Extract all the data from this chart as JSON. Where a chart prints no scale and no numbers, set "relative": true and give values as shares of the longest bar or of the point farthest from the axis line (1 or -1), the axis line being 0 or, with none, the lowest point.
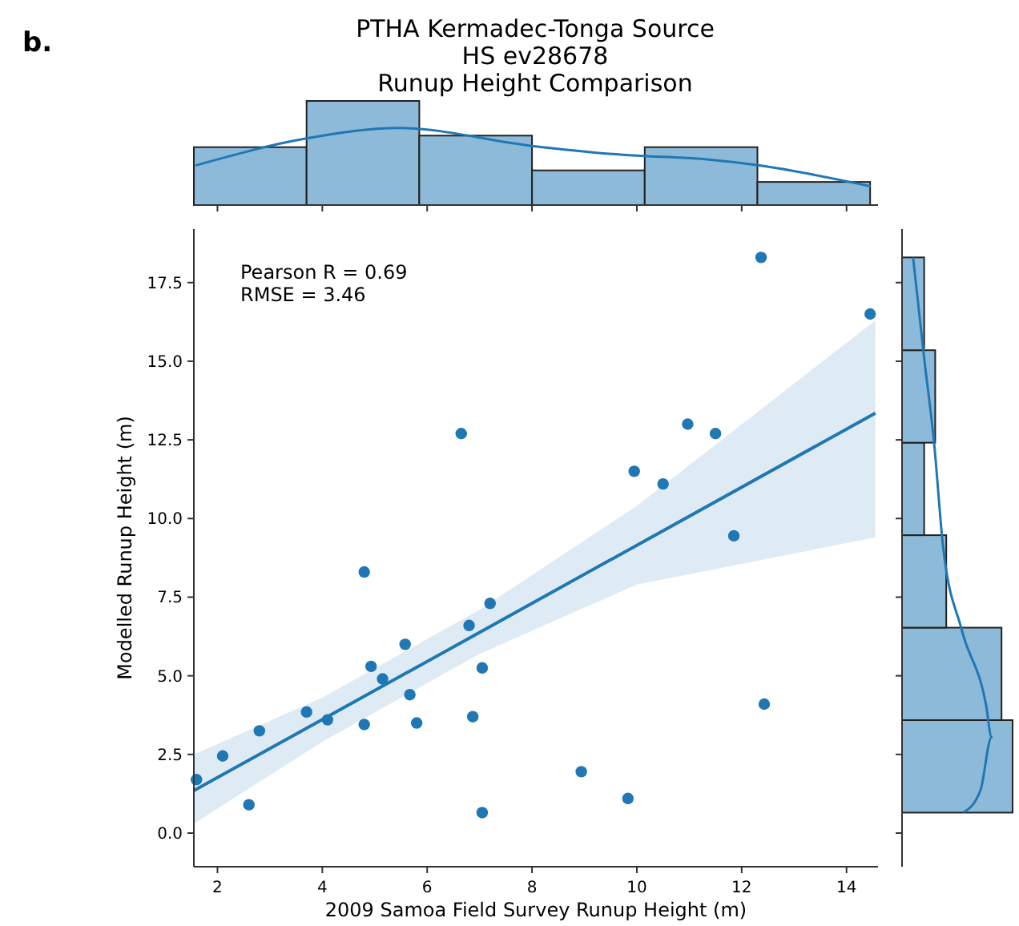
{
  "chart_data": [
    {
      "type": "histogram",
      "title": "PTHA Kermadec-Tonga Source\nHS ev28678\nRunup Height Comparison",
      "annotations": [
        "b."
      ],
      "relative": true,
      "bins": [
        1.55,
        3.7,
        5.85,
        8.0,
        10.15,
        12.3,
        14.45
      ],
      "values": [
        0.556,
        1,
        0.667,
        0.333,
        0.556,
        0.222
      ],
      "color": "#8ebad9",
      "xlim": [
        1.55,
        14.6
      ],
      "xticks": [
        2,
        4,
        6,
        8,
        10,
        12,
        14
      ],
      "tick_labels": false,
      "series": [
        {
          "type": "line",
          "color": "#1f77b4",
          "x": [
            1.58,
            3.7,
            5.46,
            7.97,
            9.79,
            11.3,
            12.34,
            14.46
          ],
          "values": [
            0.38,
            0.64,
            0.74,
            0.57,
            0.48,
            0.44,
            0.38,
            0.18
          ]
        }
      ]
    },
    {
      "type": "scatter",
      "xlabel": "2009 Samoa Field Survey Runup Height (m)",
      "ylabel": "Modelled Runup Height (m)",
      "annotations": [
        "Pearson R = 0.69",
        "RMSE = 3.46"
      ],
      "xlim": [
        1.55,
        14.6
      ],
      "ylim": [
        -1.07,
        19.2
      ],
      "xticks": [
        2,
        4,
        6,
        8,
        10,
        12,
        14
      ],
      "yticks": [
        {
          "value": 0,
          "label": "0.0"
        },
        {
          "value": 2.5,
          "label": "2.5"
        },
        {
          "value": 5,
          "label": "5.0"
        },
        {
          "value": 7.5,
          "label": "7.5"
        },
        {
          "value": 10,
          "label": "10.0"
        },
        {
          "value": 12.5,
          "label": "12.5"
        },
        {
          "value": 15,
          "label": "15.0"
        },
        {
          "value": 17.5,
          "label": "17.5"
        }
      ],
      "grid": false,
      "series": [
        {
          "type": "scatter",
          "marker": "circle",
          "color": "#1f77b4",
          "x": [
            1.6,
            2.1,
            2.8,
            2.6,
            3.7,
            4.1,
            4.8,
            4.8,
            4.93,
            5.15,
            5.58,
            5.67,
            5.8,
            6.65,
            6.8,
            6.87,
            7.2,
            7.05,
            7.05,
            8.94,
            9.83,
            9.95,
            10.5,
            10.97,
            11.5,
            11.85,
            12.37,
            12.43,
            14.45
          ],
          "values": [
            1.7,
            2.45,
            3.25,
            0.9,
            3.85,
            3.6,
            3.45,
            8.3,
            5.3,
            4.9,
            6.0,
            4.4,
            3.5,
            12.7,
            6.6,
            3.7,
            7.3,
            5.25,
            0.65,
            1.95,
            1.1,
            11.5,
            11.1,
            13.0,
            12.7,
            9.45,
            18.3,
            4.1,
            16.5
          ]
        },
        {
          "type": "line",
          "color": "#1f77b4",
          "x": [
            1.55,
            4,
            7,
            10,
            14.55
          ],
          "values": [
            1.35,
            3.61,
            6.38,
            9.15,
            13.35
          ],
          "lower": [
            0.3,
            2.9,
            5.7,
            7.9,
            9.4
          ],
          "upper": [
            2.5,
            4.3,
            7.1,
            10.4,
            16.3
          ]
        }
      ]
    },
    {
      "type": "histogram",
      "orientation": "horizontal",
      "relative": true,
      "bins": [
        0.65,
        3.59,
        6.53,
        9.47,
        12.41,
        15.35,
        18.3
      ],
      "values": [
        1,
        0.9,
        0.4,
        0.2,
        0.3,
        0.2
      ],
      "color": "#8ebad9",
      "ylim": [
        -1.07,
        19.2
      ],
      "yticks": [
        0,
        2.5,
        5,
        7.5,
        10,
        12.5,
        15,
        17.5
      ],
      "tick_labels": false,
      "series": [
        {
          "type": "line",
          "color": "#1f77b4",
          "x": [
            18.3,
            15.1,
            12.4,
            9.15,
            6.46,
            4.07,
            3.05,
            1.37,
            0.66
          ],
          "values": [
            0.1,
            0.2,
            0.29,
            0.37,
            0.54,
            0.76,
            0.81,
            0.71,
            0.56
          ]
        }
      ]
    }
  ]
}
